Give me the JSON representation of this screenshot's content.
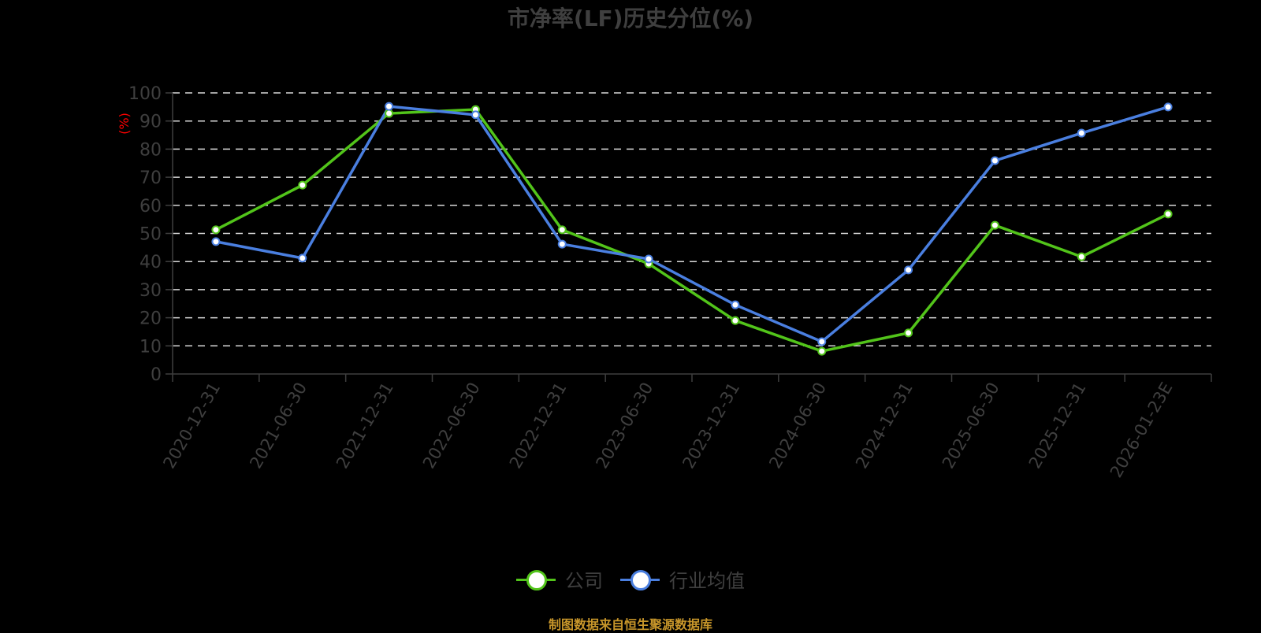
{
  "chart": {
    "title": "市净率(LF)历史分位(%)",
    "y_unit_label": "(%)",
    "y_unit_color": "#ff0000",
    "legend": [
      {
        "label": "公司",
        "color": "#52c41a"
      },
      {
        "label": "行业均值",
        "color": "#4a7fe0"
      }
    ],
    "source": "制图数据来自恒生聚源数据库"
  },
  "chart_data": {
    "type": "line",
    "title": "市净率(LF)历史分位(%)",
    "xlabel": "",
    "ylabel": "(%)",
    "ylim": [
      0,
      100
    ],
    "yticks": [
      0,
      10,
      20,
      30,
      40,
      50,
      60,
      70,
      80,
      90,
      100
    ],
    "grid": true,
    "legend_position": "bottom",
    "categories": [
      "2020-12-31",
      "2021-06-30",
      "2021-12-31",
      "2022-06-30",
      "2022-12-31",
      "2023-06-30",
      "2023-12-31",
      "2024-06-30",
      "2024-12-31",
      "2025-06-30",
      "2025-12-31",
      "2026-01-23E"
    ],
    "series": [
      {
        "name": "公司",
        "color": "#52c41a",
        "values": [
          51.3,
          67.2,
          92.7,
          94.1,
          51.3,
          39.2,
          19.0,
          8.1,
          14.6,
          52.9,
          41.7,
          56.9
        ]
      },
      {
        "name": "行业均值",
        "color": "#4a7fe0",
        "values": [
          47.1,
          41.2,
          95.2,
          92.2,
          46.2,
          40.9,
          24.6,
          11.5,
          37.0,
          75.9,
          85.7,
          95.0
        ]
      }
    ]
  }
}
